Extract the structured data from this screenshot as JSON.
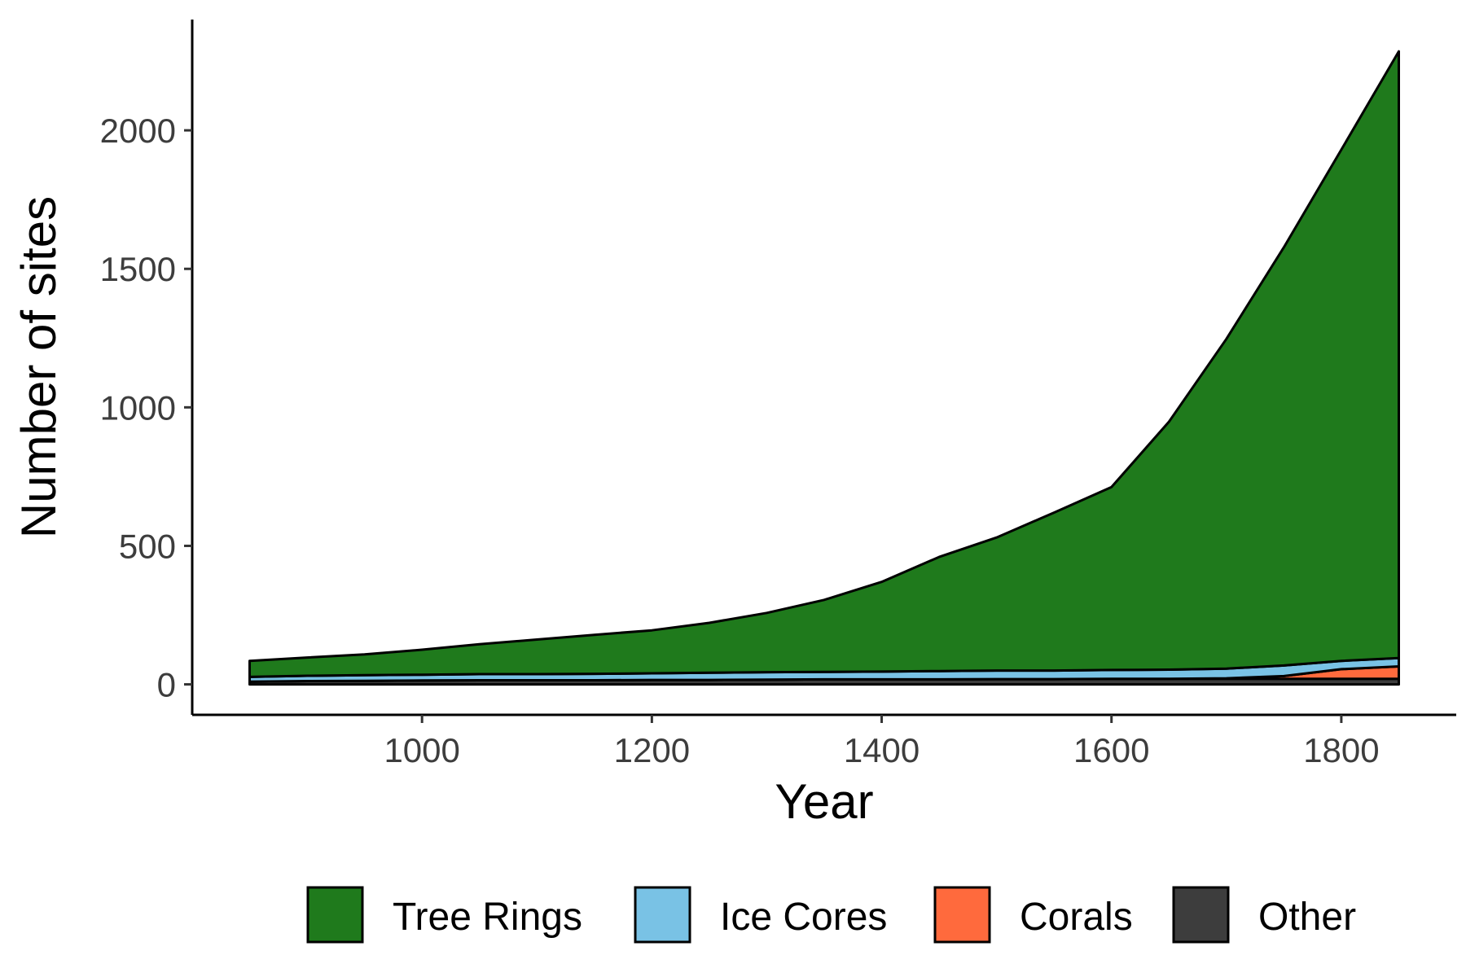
{
  "chart_data": {
    "type": "area",
    "stacked": true,
    "xlabel": "Year",
    "ylabel": "Number of sites",
    "xlim": [
      800,
      1900
    ],
    "ylim": [
      -110,
      2400
    ],
    "x_ticks": [
      1000,
      1200,
      1400,
      1600,
      1800
    ],
    "y_ticks": [
      0,
      500,
      1000,
      1500,
      2000
    ],
    "x_tick_labels": [
      "1000",
      "1200",
      "1400",
      "1600",
      "1800"
    ],
    "y_tick_labels": [
      "0",
      "500",
      "1000",
      "1500",
      "2000"
    ],
    "grid": false,
    "legend_position": "bottom",
    "x": [
      850,
      900,
      950,
      1000,
      1050,
      1100,
      1150,
      1200,
      1250,
      1300,
      1350,
      1400,
      1450,
      1500,
      1550,
      1600,
      1650,
      1700,
      1750,
      1800,
      1850
    ],
    "series": [
      {
        "name": "Other",
        "color": "#3d3d3d",
        "values": [
          10,
          12,
          13,
          14,
          15,
          15,
          15,
          16,
          16,
          17,
          18,
          18,
          18,
          19,
          19,
          20,
          20,
          20,
          20,
          20,
          20
        ]
      },
      {
        "name": "Corals",
        "color": "#ff6a3d",
        "values": [
          0,
          0,
          0,
          0,
          0,
          0,
          0,
          0,
          0,
          0,
          0,
          0,
          0,
          0,
          0,
          0,
          0,
          2,
          10,
          35,
          45
        ]
      },
      {
        "name": "Ice Cores",
        "color": "#79c2e5",
        "values": [
          17,
          19,
          20,
          21,
          22,
          22,
          23,
          24,
          26,
          27,
          27,
          28,
          30,
          31,
          31,
          32,
          33,
          35,
          38,
          30,
          30
        ]
      },
      {
        "name": "Tree Rings",
        "color": "#1f7a1c",
        "values": [
          58,
          66,
          75,
          90,
          108,
          125,
          141,
          155,
          180,
          214,
          260,
          324,
          412,
          480,
          570,
          660,
          895,
          1190,
          1510,
          1845,
          2190
        ]
      }
    ],
    "legend": [
      {
        "label": "Tree Rings",
        "color": "#1f7a1c"
      },
      {
        "label": "Ice Cores",
        "color": "#79c2e5"
      },
      {
        "label": "Corals",
        "color": "#ff6a3d"
      },
      {
        "label": "Other",
        "color": "#3d3d3d"
      }
    ]
  }
}
